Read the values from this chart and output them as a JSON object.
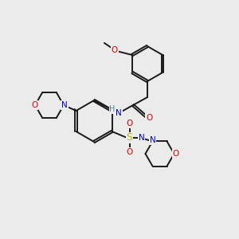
{
  "bg_color": "#ebebeb",
  "bond_color": "#1a1a1a",
  "atom_colors": {
    "O": "#dd0000",
    "N": "#0000cc",
    "S": "#bbbb00",
    "C": "#1a1a1a",
    "H": "#4a8888"
  },
  "figsize": [
    3.0,
    3.0
  ],
  "dpi": 100
}
